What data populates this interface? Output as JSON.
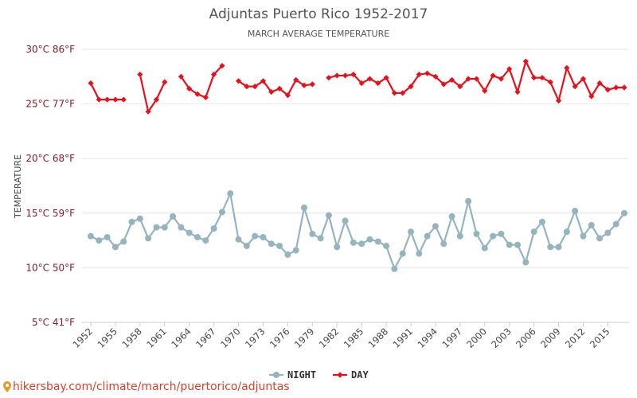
{
  "chart_data": {
    "type": "line",
    "title": "Adjuntas Puerto Rico 1952-2017",
    "subtitle": "MARCH AVERAGE TEMPERATURE",
    "ylabel": "TEMPERATURE",
    "ylim": [
      5,
      30
    ],
    "yticks": [
      {
        "value": 30,
        "label": "30°C 86°F"
      },
      {
        "value": 25,
        "label": "25°C 77°F"
      },
      {
        "value": 20,
        "label": "20°C 68°F"
      },
      {
        "value": 15,
        "label": "15°C 59°F"
      },
      {
        "value": 10,
        "label": "10°C 50°F"
      },
      {
        "value": 5,
        "label": "5°C 41°F"
      }
    ],
    "xlim": [
      1952,
      2017
    ],
    "xticks": [
      "1952",
      "1955",
      "1958",
      "1961",
      "1964",
      "1967",
      "1970",
      "1973",
      "1976",
      "1979",
      "1982",
      "1985",
      "1988",
      "1991",
      "1994",
      "1997",
      "2000",
      "2003",
      "2006",
      "2009",
      "2012",
      "2015"
    ],
    "grid": true,
    "legend_position": "bottom",
    "x": [
      1952,
      1953,
      1954,
      1955,
      1956,
      1957,
      1958,
      1959,
      1960,
      1961,
      1962,
      1963,
      1964,
      1965,
      1966,
      1967,
      1968,
      1969,
      1970,
      1971,
      1972,
      1973,
      1974,
      1975,
      1976,
      1977,
      1978,
      1979,
      1980,
      1981,
      1982,
      1983,
      1984,
      1985,
      1986,
      1987,
      1988,
      1989,
      1990,
      1991,
      1992,
      1993,
      1994,
      1995,
      1996,
      1997,
      1998,
      1999,
      2000,
      2001,
      2002,
      2003,
      2004,
      2005,
      2006,
      2007,
      2008,
      2009,
      2010,
      2011,
      2012,
      2013,
      2014,
      2015,
      2016,
      2017
    ],
    "series": [
      {
        "name": "NIGHT",
        "color": "#95b4bd",
        "values": [
          12.9,
          12.5,
          12.8,
          11.9,
          12.4,
          14.2,
          14.5,
          12.7,
          13.7,
          13.7,
          14.7,
          13.7,
          13.2,
          12.8,
          12.5,
          13.6,
          15.1,
          16.8,
          12.6,
          12.0,
          12.9,
          12.8,
          12.2,
          12.0,
          11.2,
          11.6,
          15.5,
          13.1,
          12.7,
          14.8,
          11.9,
          14.3,
          12.3,
          12.2,
          12.6,
          12.4,
          12.0,
          9.9,
          11.3,
          13.3,
          11.3,
          12.9,
          13.8,
          12.2,
          14.7,
          12.9,
          16.1,
          13.1,
          11.8,
          12.9,
          13.1,
          12.1,
          12.1,
          10.5,
          13.3,
          14.2,
          11.9,
          11.9,
          13.3,
          15.2,
          12.9,
          13.9,
          12.7,
          13.2,
          14.0,
          15.0
        ]
      },
      {
        "name": "DAY",
        "color": "#e8101a",
        "values": [
          26.9,
          25.4,
          25.4,
          25.4,
          25.4,
          null,
          27.7,
          24.3,
          25.4,
          27.0,
          null,
          27.5,
          26.4,
          25.9,
          25.6,
          27.7,
          28.5,
          null,
          27.1,
          26.6,
          26.6,
          27.1,
          26.1,
          26.4,
          25.8,
          27.2,
          26.7,
          26.8,
          null,
          27.4,
          27.6,
          27.6,
          27.7,
          26.9,
          27.3,
          26.9,
          27.4,
          26.0,
          26.0,
          26.6,
          27.7,
          27.8,
          27.5,
          26.8,
          27.2,
          26.6,
          27.3,
          27.3,
          26.2,
          27.6,
          27.3,
          28.2,
          26.1,
          28.9,
          27.4,
          27.4,
          27.0,
          25.3,
          28.3,
          26.6,
          27.3,
          25.7,
          26.9,
          26.3,
          26.5,
          26.5
        ]
      }
    ]
  },
  "footer": {
    "text": "hikersbay.com/climate/march/puertorico/adjuntas"
  }
}
